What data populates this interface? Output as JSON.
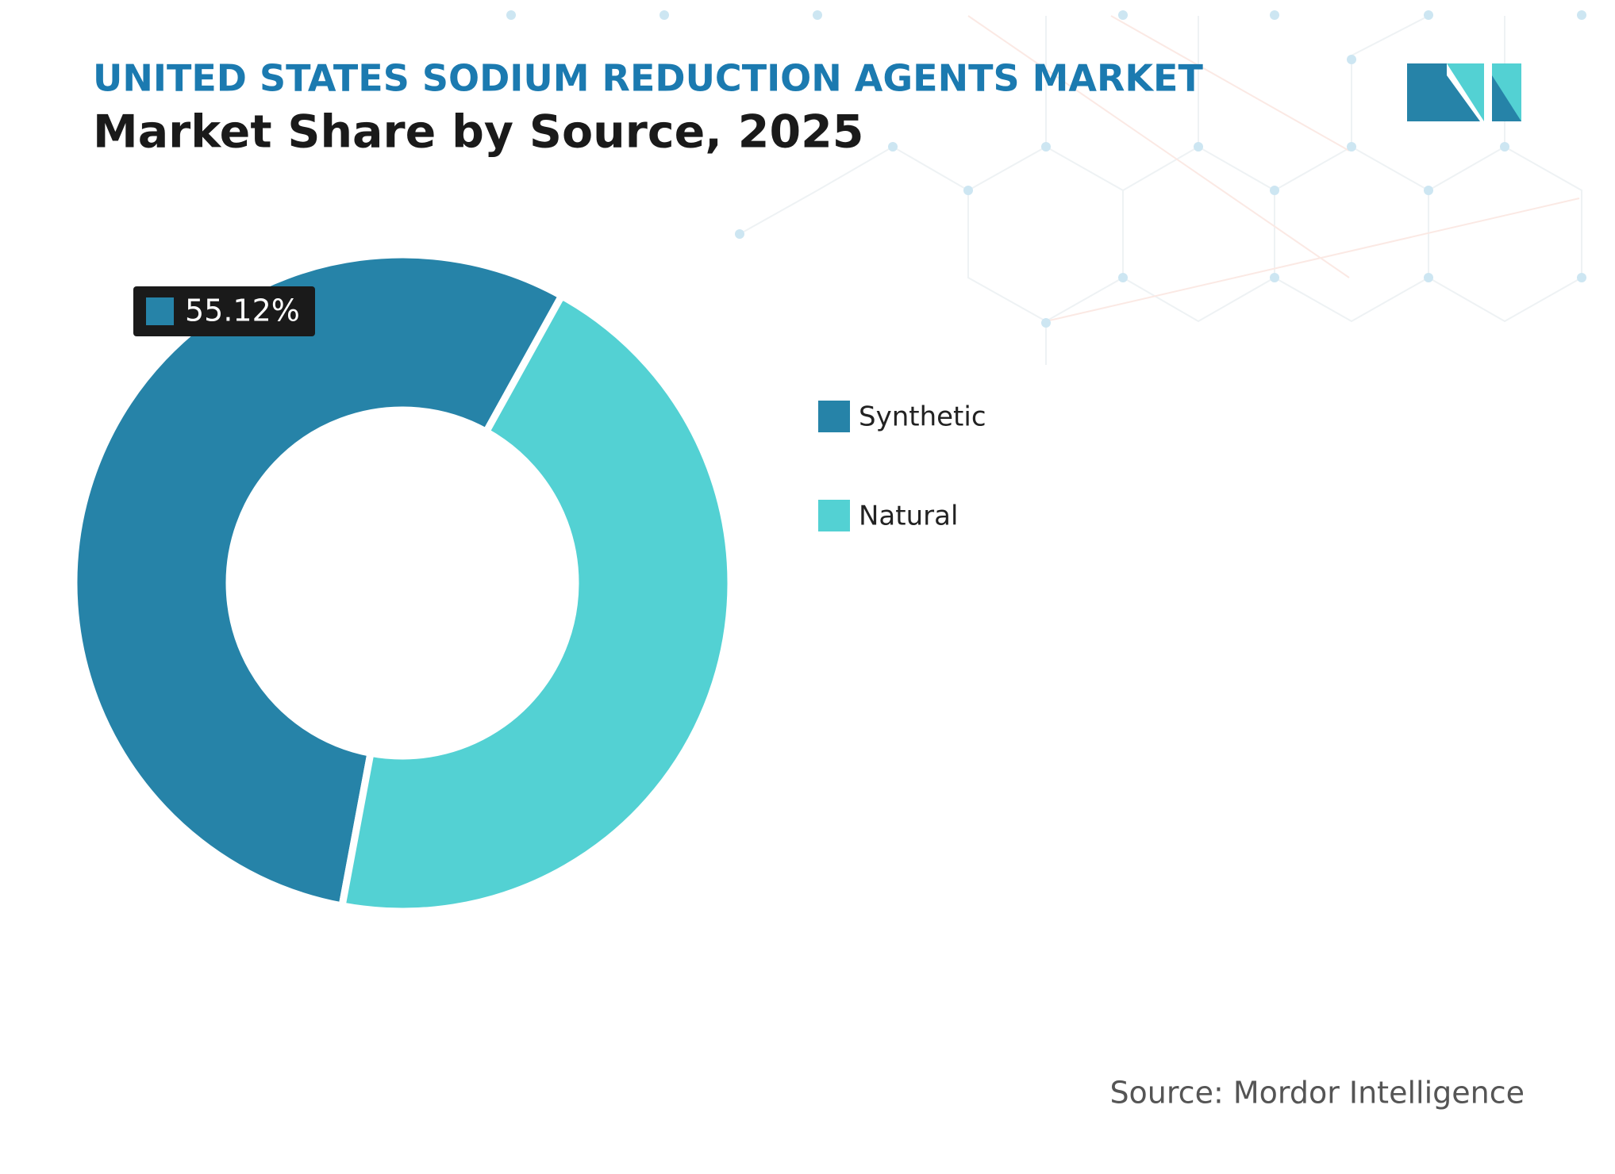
{
  "header": {
    "title": "UNITED STATES SODIUM REDUCTION AGENTS MARKET",
    "subtitle": "Market Share by Source, 2025"
  },
  "chart_data": {
    "type": "donut",
    "categories": [
      "Synthetic",
      "Natural"
    ],
    "values": [
      55.12,
      44.88
    ],
    "value_labels": [
      "55.12%",
      null
    ],
    "colors": [
      "#2683a8",
      "#53d1d3"
    ]
  },
  "footer": {
    "source": "Source: Mordor Intelligence"
  }
}
